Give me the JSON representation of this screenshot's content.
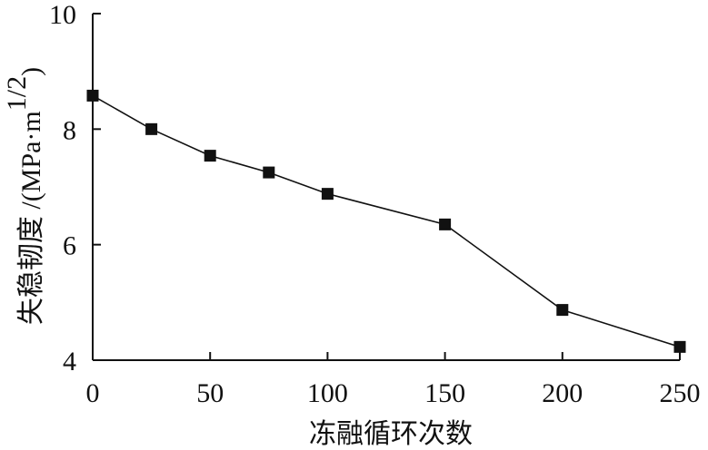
{
  "chart_data": {
    "type": "line",
    "title": "",
    "xlabel": "冻融循环次数",
    "ylabel": {
      "name": "失稳韧度",
      "sep": " /",
      "unit_open": "(MPa·m",
      "unit_sup": "1/2",
      "unit_close": ")"
    },
    "xlim": [
      0,
      250
    ],
    "ylim": [
      4,
      10
    ],
    "x_ticks": [
      0,
      50,
      100,
      150,
      200,
      250
    ],
    "y_ticks": [
      4,
      6,
      8,
      10
    ],
    "grid": false,
    "legend": "none",
    "marker": "square",
    "line_color": "#111111",
    "series": [
      {
        "x": [
          0,
          25,
          50,
          75,
          100,
          150,
          200,
          250
        ],
        "values": [
          8.58,
          8.0,
          7.54,
          7.25,
          6.88,
          6.35,
          4.87,
          4.23
        ]
      }
    ]
  }
}
